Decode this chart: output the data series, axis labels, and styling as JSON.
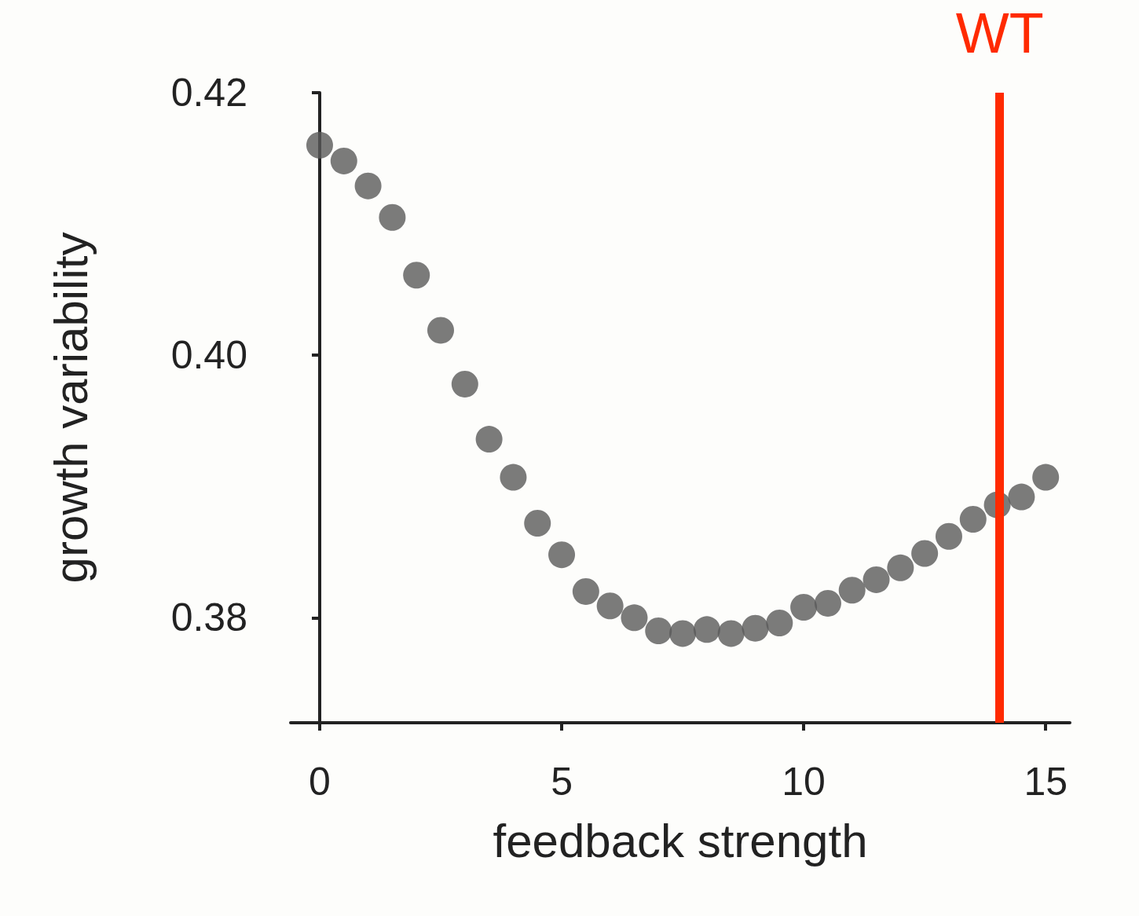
{
  "chart_data": {
    "type": "scatter",
    "xlabel": "feedback strength",
    "ylabel": "growth variability",
    "x": [
      0,
      0.5,
      1,
      1.5,
      2,
      2.5,
      3,
      3.5,
      4,
      4.5,
      5,
      5.5,
      6,
      6.5,
      7,
      7.5,
      8,
      8.5,
      9,
      9.5,
      10,
      10.5,
      11,
      11.5,
      12,
      12.5,
      13,
      13.5,
      14,
      14.5,
      15
    ],
    "series": [
      {
        "color": "#5a5a5a",
        "values": [
          0.416,
          0.4148,
          0.4129,
          0.4105,
          0.4061,
          0.4019,
          0.3978,
          0.3936,
          0.3907,
          0.3872,
          0.3848,
          0.382,
          0.3809,
          0.38,
          0.379,
          0.3788,
          0.3791,
          0.3788,
          0.3792,
          0.3796,
          0.3808,
          0.3811,
          0.3821,
          0.3829,
          0.3838,
          0.3849,
          0.3862,
          0.3875,
          0.3886,
          0.3892,
          0.3907
        ]
      }
    ],
    "xlim": [
      -0.6,
      15.5
    ],
    "xticks": [
      0,
      5,
      10,
      15
    ],
    "ylim": [
      0.372,
      0.42
    ],
    "yticks": [
      0.38,
      {
        "value": 0.4,
        "label": "0.40"
      },
      0.42
    ],
    "ref_lines": [
      {
        "axis": "x",
        "value": 14.05,
        "label": "WT",
        "color": "#ff2a00",
        "line_style": "solid"
      }
    ],
    "marker": "circle",
    "grid": false
  }
}
